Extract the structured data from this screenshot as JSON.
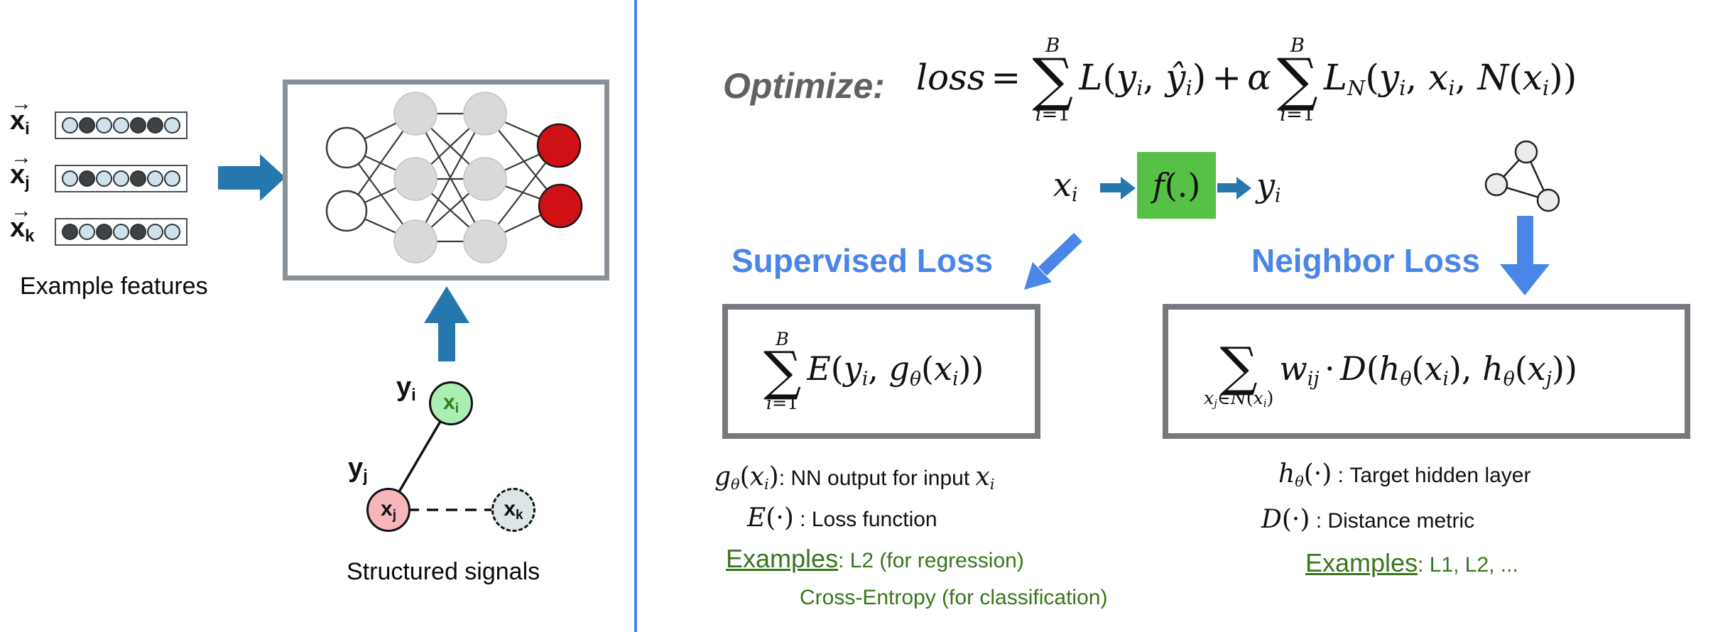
{
  "colors": {
    "divider_blue": "#4a86e8",
    "heading_blue": "#4a86e8",
    "left_arrow_blue": "#2478ad",
    "right_arrow_blue": "#4a86e8",
    "optimize_gray": "#5f6163",
    "green_text": "#38761d",
    "fn_box_green": "#57c046",
    "output_node_red": "#cf1115",
    "hidden_node_gray": "#d9d9d9",
    "box_border_gray": "#76797d",
    "light_dot": "#cfe2ec",
    "dark_dot": "#3f4245",
    "green_node": "#a9eeb2",
    "pink_node": "#f6b6ba",
    "dashed_node": "#dce6e9"
  },
  "left": {
    "vector_arrow": "→",
    "rows": [
      {
        "main": "x",
        "sub": "i",
        "dots": [
          "light",
          "dark",
          "light",
          "light",
          "dark",
          "dark",
          "light"
        ]
      },
      {
        "main": "x",
        "sub": "j",
        "dots": [
          "light",
          "dark",
          "light",
          "light",
          "dark",
          "light",
          "light"
        ]
      },
      {
        "main": "x",
        "sub": "k",
        "dots": [
          "dark",
          "light",
          "dark",
          "light",
          "dark",
          "light",
          "light"
        ]
      }
    ],
    "features_caption": "Example features",
    "signals_caption": "Structured signals",
    "graph_labels": {
      "yi": {
        "main": "y",
        "sub": "i"
      },
      "yj": {
        "main": "y",
        "sub": "j"
      },
      "xi": {
        "main": "x",
        "sub": "i"
      },
      "xj": {
        "main": "x",
        "sub": "j"
      },
      "xk": {
        "main": "x",
        "sub": "k"
      }
    }
  },
  "right": {
    "optimize_label": "Optimize:",
    "supervised_heading": "Supervised Loss",
    "neighbor_heading": "Neighbor Loss",
    "formulas": {
      "main": [
        {
          "t": "var",
          "v": "loss"
        },
        {
          "t": "op",
          "v": "="
        },
        {
          "t": "sum",
          "sym": "∑",
          "top": [
            {
              "t": "var",
              "v": "B"
            }
          ],
          "bot": [
            {
              "t": "var",
              "v": "i"
            },
            {
              "t": "pl",
              "v": "="
            },
            {
              "t": "pl",
              "v": "1"
            }
          ]
        },
        {
          "t": "var",
          "v": "L"
        },
        {
          "t": "pl",
          "v": "("
        },
        {
          "t": "var",
          "v": "y"
        },
        {
          "t": "sub",
          "v": "i"
        },
        {
          "t": "pl",
          "v": ", "
        },
        {
          "t": "var",
          "v": "ŷ"
        },
        {
          "t": "sub",
          "v": "i"
        },
        {
          "t": "pl",
          "v": ")"
        },
        {
          "t": "op",
          "v": "+"
        },
        {
          "t": "var",
          "v": "α"
        },
        {
          "t": "sum",
          "sym": "∑",
          "top": [
            {
              "t": "var",
              "v": "B"
            }
          ],
          "bot": [
            {
              "t": "var",
              "v": "i"
            },
            {
              "t": "pl",
              "v": "="
            },
            {
              "t": "pl",
              "v": "1"
            }
          ]
        },
        {
          "t": "var",
          "v": "L"
        },
        {
          "t": "sub",
          "v": "N"
        },
        {
          "t": "pl",
          "v": "("
        },
        {
          "t": "var",
          "v": "y"
        },
        {
          "t": "sub",
          "v": "i"
        },
        {
          "t": "pl",
          "v": ", "
        },
        {
          "t": "var",
          "v": "x"
        },
        {
          "t": "sub",
          "v": "i"
        },
        {
          "t": "pl",
          "v": ", "
        },
        {
          "t": "var",
          "v": "N"
        },
        {
          "t": "pl",
          "v": "("
        },
        {
          "t": "var",
          "v": "x"
        },
        {
          "t": "sub",
          "v": "i"
        },
        {
          "t": "pl",
          "v": "))"
        }
      ],
      "fn_input": [
        {
          "t": "var",
          "v": "x"
        },
        {
          "t": "sub",
          "v": "i"
        }
      ],
      "fn_label": [
        {
          "t": "var",
          "v": "f"
        },
        {
          "t": "pl",
          "v": "(.)"
        }
      ],
      "fn_output": [
        {
          "t": "var",
          "v": "y"
        },
        {
          "t": "sub",
          "v": "i"
        }
      ],
      "supervised": [
        {
          "t": "sum",
          "sym": "∑",
          "top": [
            {
              "t": "var",
              "v": "B"
            }
          ],
          "bot": [
            {
              "t": "var",
              "v": "i"
            },
            {
              "t": "pl",
              "v": "="
            },
            {
              "t": "pl",
              "v": "1"
            }
          ]
        },
        {
          "t": "var",
          "v": "E"
        },
        {
          "t": "pl",
          "v": "("
        },
        {
          "t": "var",
          "v": "y"
        },
        {
          "t": "sub",
          "v": "i"
        },
        {
          "t": "pl",
          "v": ", "
        },
        {
          "t": "var",
          "v": "g"
        },
        {
          "t": "sub",
          "v": "θ"
        },
        {
          "t": "pl",
          "v": "("
        },
        {
          "t": "var",
          "v": "x"
        },
        {
          "t": "sub",
          "v": "i"
        },
        {
          "t": "pl",
          "v": "))"
        }
      ],
      "neighbor": [
        {
          "t": "sum",
          "sym": "∑",
          "top": [],
          "bot": [
            {
              "t": "var",
              "v": "x"
            },
            {
              "t": "sub",
              "v": "j"
            },
            {
              "t": "pl",
              "v": "∈"
            },
            {
              "t": "var",
              "v": "N"
            },
            {
              "t": "pl",
              "v": "("
            },
            {
              "t": "var",
              "v": "x"
            },
            {
              "t": "sub",
              "v": "i"
            },
            {
              "t": "pl",
              "v": ")"
            }
          ]
        },
        {
          "t": "var",
          "v": "w"
        },
        {
          "t": "sub",
          "v": "ij"
        },
        {
          "t": "op",
          "v": "·"
        },
        {
          "t": "var",
          "v": "D"
        },
        {
          "t": "pl",
          "v": "("
        },
        {
          "t": "var",
          "v": "h"
        },
        {
          "t": "sub",
          "v": "θ"
        },
        {
          "t": "pl",
          "v": "("
        },
        {
          "t": "var",
          "v": "x"
        },
        {
          "t": "sub",
          "v": "i"
        },
        {
          "t": "pl",
          "v": "), "
        },
        {
          "t": "var",
          "v": "h"
        },
        {
          "t": "sub",
          "v": "θ"
        },
        {
          "t": "pl",
          "v": "("
        },
        {
          "t": "var",
          "v": "x"
        },
        {
          "t": "sub",
          "v": "j"
        },
        {
          "t": "pl",
          "v": "))"
        }
      ],
      "ann_g": [
        {
          "t": "var",
          "v": "g"
        },
        {
          "t": "sub",
          "v": "θ"
        },
        {
          "t": "pl",
          "v": "("
        },
        {
          "t": "var",
          "v": "x"
        },
        {
          "t": "sub",
          "v": "i"
        },
        {
          "t": "pl",
          "v": ")"
        },
        {
          "t": "txt",
          "v": ": NN output for input "
        },
        {
          "t": "var",
          "v": "x"
        },
        {
          "t": "sub",
          "v": "i"
        }
      ],
      "ann_e": [
        {
          "t": "var",
          "v": "E"
        },
        {
          "t": "pl",
          "v": "(·)"
        },
        {
          "t": "txt",
          "v": " : Loss function"
        }
      ],
      "ann_h": [
        {
          "t": "var",
          "v": "h"
        },
        {
          "t": "sub",
          "v": "θ"
        },
        {
          "t": "pl",
          "v": "(·)"
        },
        {
          "t": "txt",
          "v": " : Target hidden layer"
        }
      ],
      "ann_d": [
        {
          "t": "var",
          "v": "D"
        },
        {
          "t": "pl",
          "v": "(·)"
        },
        {
          "t": "txt",
          "v": " : Distance metric"
        }
      ],
      "ex_left1": [
        {
          "t": "u",
          "v": "Examples"
        },
        {
          "t": "txt",
          "v": ": L2 (for regression)"
        }
      ],
      "ex_left2": [
        {
          "t": "txt",
          "v": "Cross-Entropy (for classification)"
        }
      ],
      "ex_right": [
        {
          "t": "u",
          "v": "Examples"
        },
        {
          "t": "txt",
          "v": ": L1, L2, ..."
        }
      ]
    }
  }
}
